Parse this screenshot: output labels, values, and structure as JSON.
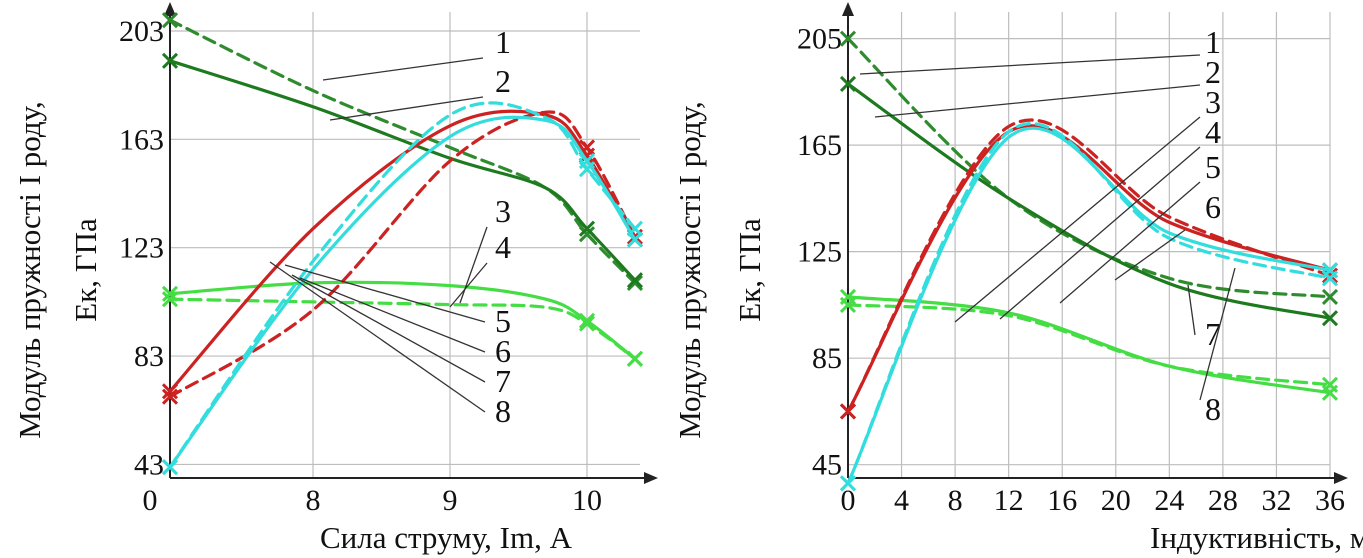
{
  "chart_data": [
    {
      "type": "line",
      "xlabel": "Сила струму, Im, А",
      "ylabel_lines": [
        "Модуль пружності І роду,",
        "Ек, ГПа"
      ],
      "x_ticks": [
        "0",
        "8",
        "9",
        "10"
      ],
      "y_ticks": [
        "43",
        "83",
        "123",
        "163",
        "203"
      ],
      "xlim": [
        7.0,
        10.45
      ],
      "ylim": [
        38,
        210
      ],
      "grid": true,
      "x_axis_break_label": "0",
      "series": [
        {
          "id": "1",
          "color": "#2e8b2e",
          "dash": true,
          "x": [
            7.0,
            8.0,
            9.0,
            9.7,
            10.0,
            10.35
          ],
          "y": [
            207,
            181,
            160,
            145,
            128,
            110
          ]
        },
        {
          "id": "2",
          "color": "#1e7a1e",
          "dash": false,
          "x": [
            7.0,
            8.0,
            9.0,
            9.7,
            10.0,
            10.35
          ],
          "y": [
            192,
            175,
            156,
            145,
            130,
            111
          ]
        },
        {
          "id": "3",
          "color": "#44dd44",
          "dash": false,
          "x": [
            7.0,
            8.0,
            9.0,
            9.7,
            10.0,
            10.35
          ],
          "y": [
            106,
            110,
            109,
            104,
            96,
            82
          ]
        },
        {
          "id": "4",
          "color": "#44dd44",
          "dash": true,
          "x": [
            7.0,
            8.0,
            9.0,
            9.7,
            10.0,
            10.35
          ],
          "y": [
            104,
            103,
            102,
            101,
            95,
            82
          ]
        },
        {
          "id": "5",
          "color": "#cc2222",
          "dash": false,
          "x": [
            7.0,
            8.0,
            9.0,
            9.7,
            10.0,
            10.35
          ],
          "y": [
            70,
            130,
            168,
            172,
            157,
            126
          ]
        },
        {
          "id": "6",
          "color": "#cc2222",
          "dash": true,
          "x": [
            7.0,
            8.0,
            9.0,
            9.7,
            10.0,
            10.35
          ],
          "y": [
            68,
            100,
            155,
            173,
            160,
            127
          ]
        },
        {
          "id": "7",
          "color": "#33dddd",
          "dash": false,
          "x": [
            7.0,
            8.0,
            9.0,
            9.7,
            10.0,
            10.35
          ],
          "y": [
            42,
            115,
            164,
            170,
            155,
            126
          ]
        },
        {
          "id": "8",
          "color": "#33dddd",
          "dash": true,
          "x": [
            7.0,
            8.0,
            9.0,
            9.7,
            10.0,
            10.35
          ],
          "y": [
            42,
            118,
            172,
            171,
            152,
            130
          ]
        }
      ]
    },
    {
      "type": "line",
      "xlabel": "Індуктивність, мкГн",
      "ylabel_lines": [
        "Модуль пружності І роду,",
        "Ек, ГПа"
      ],
      "x_ticks": [
        "0",
        "4",
        "8",
        "12",
        "16",
        "20",
        "24",
        "28",
        "32",
        "36"
      ],
      "y_ticks": [
        "45",
        "85",
        "125",
        "165",
        "205"
      ],
      "xlim": [
        0,
        36
      ],
      "ylim": [
        40,
        215
      ],
      "grid": true,
      "series": [
        {
          "id": "1",
          "color": "#2e8b2e",
          "dash": true,
          "x": [
            0,
            12,
            24,
            36
          ],
          "y": [
            205,
            145,
            115,
            108
          ]
        },
        {
          "id": "2",
          "color": "#1e7a1e",
          "dash": false,
          "x": [
            0,
            12,
            24,
            36
          ],
          "y": [
            188,
            145,
            113,
            100
          ]
        },
        {
          "id": "3",
          "color": "#44dd44",
          "dash": false,
          "x": [
            0,
            12,
            24,
            36
          ],
          "y": [
            108,
            102,
            82,
            72
          ]
        },
        {
          "id": "4",
          "color": "#44dd44",
          "dash": true,
          "x": [
            0,
            12,
            24,
            36
          ],
          "y": [
            105,
            101,
            82,
            75
          ]
        },
        {
          "id": "5",
          "color": "#cc2222",
          "dash": false,
          "x": [
            0,
            12,
            24,
            36
          ],
          "y": [
            65,
            170,
            136,
            118
          ]
        },
        {
          "id": "6",
          "color": "#cc2222",
          "dash": true,
          "x": [
            0,
            12,
            24,
            36
          ],
          "y": [
            65,
            172,
            138,
            116
          ]
        },
        {
          "id": "7",
          "color": "#33dddd",
          "dash": false,
          "x": [
            0,
            12,
            24,
            36
          ],
          "y": [
            38,
            168,
            132,
            118
          ]
        },
        {
          "id": "8",
          "color": "#33dddd",
          "dash": true,
          "x": [
            0,
            12,
            24,
            36
          ],
          "y": [
            38,
            170,
            130,
            115
          ]
        }
      ]
    }
  ]
}
